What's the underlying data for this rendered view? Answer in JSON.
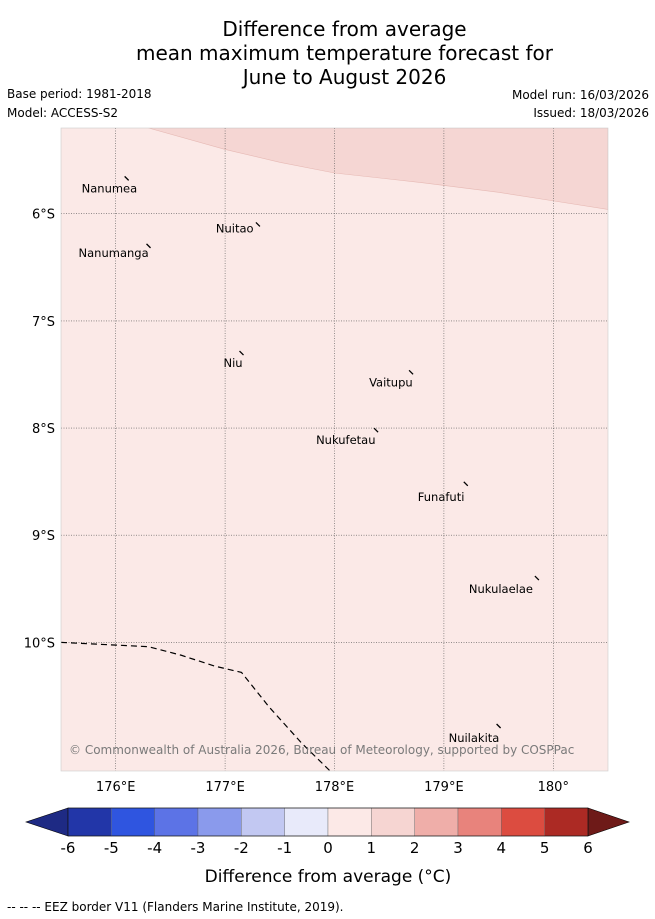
{
  "title": {
    "line1": "Difference from average",
    "line2": "mean maximum temperature forecast for",
    "line3": "June to August 2026"
  },
  "meta": {
    "base_period": "Base period: 1981-2018",
    "model": "Model: ACCESS-S2",
    "model_run": "Model run: 16/03/2026",
    "issued": "Issued: 18/03/2026"
  },
  "map": {
    "lon_range": [
      175.5,
      180.5
    ],
    "lat_range": [
      -11.2,
      -5.2
    ],
    "lon_ticks": [
      176,
      177,
      178,
      179,
      180
    ],
    "lon_labels": [
      "176°E",
      "177°E",
      "178°E",
      "179°E",
      "180°"
    ],
    "lat_ticks": [
      -6,
      -7,
      -8,
      -9,
      -10
    ],
    "lat_labels": [
      "6°S",
      "7°S",
      "8°S",
      "9°S",
      "10°S"
    ],
    "copyright": "© Commonwealth of Australia 2026, Bureau of Meteorology, supported by COSPPac",
    "islands": [
      {
        "name": "Nanumea",
        "lon": 176.1,
        "lat": -5.67
      },
      {
        "name": "Nuitao",
        "lon": 177.3,
        "lat": -6.1
      },
      {
        "name": "Nanumanga",
        "lon": 176.3,
        "lat": -6.3
      },
      {
        "name": "Niu",
        "lon": 177.15,
        "lat": -7.3
      },
      {
        "name": "Vaitupu",
        "lon": 178.7,
        "lat": -7.48
      },
      {
        "name": "Nukufetau",
        "lon": 178.38,
        "lat": -8.02
      },
      {
        "name": "Funafuti",
        "lon": 179.2,
        "lat": -8.52
      },
      {
        "name": "Nukulaelae",
        "lon": 179.85,
        "lat": -9.4
      },
      {
        "name": "Nuilakita",
        "lon": 179.5,
        "lat": -10.78
      }
    ],
    "eez_border": [
      [
        175.5,
        -10.0
      ],
      [
        175.9,
        -10.02
      ],
      [
        176.3,
        -10.04
      ],
      [
        176.6,
        -10.12
      ],
      [
        176.9,
        -10.22
      ],
      [
        177.15,
        -10.28
      ],
      [
        177.4,
        -10.6
      ],
      [
        177.7,
        -10.94
      ],
      [
        177.98,
        -11.22
      ]
    ],
    "warm_zone_edge": [
      [
        176.3,
        -5.2
      ],
      [
        177.0,
        -5.4
      ],
      [
        177.5,
        -5.52
      ],
      [
        178.0,
        -5.62
      ],
      [
        178.8,
        -5.71
      ],
      [
        179.5,
        -5.8
      ],
      [
        180.0,
        -5.88
      ],
      [
        180.5,
        -5.96
      ]
    ]
  },
  "colorbar": {
    "label": "Difference from average (°C)",
    "ticks": [
      "-6",
      "-5",
      "-4",
      "-3",
      "-2",
      "-1",
      "0",
      "1",
      "2",
      "3",
      "4",
      "5",
      "6"
    ],
    "under_color": "#1e2a84",
    "over_color": "#6e1a18",
    "colors": [
      "#2236a8",
      "#2f55e0",
      "#5c73e6",
      "#8a9aec",
      "#c2c8f2",
      "#e8eafa",
      "#fce9e7",
      "#f6d5d2",
      "#efaea9",
      "#e8837c",
      "#dc4c40",
      "#ac2a24"
    ]
  },
  "fill_colors": {
    "base": "#fbe9e7",
    "warm": "#f5d6d3",
    "plot_border": "#cccccc"
  },
  "footnote": "--  --  -- EEZ border V11 (Flanders Marine Institute, 2019)."
}
